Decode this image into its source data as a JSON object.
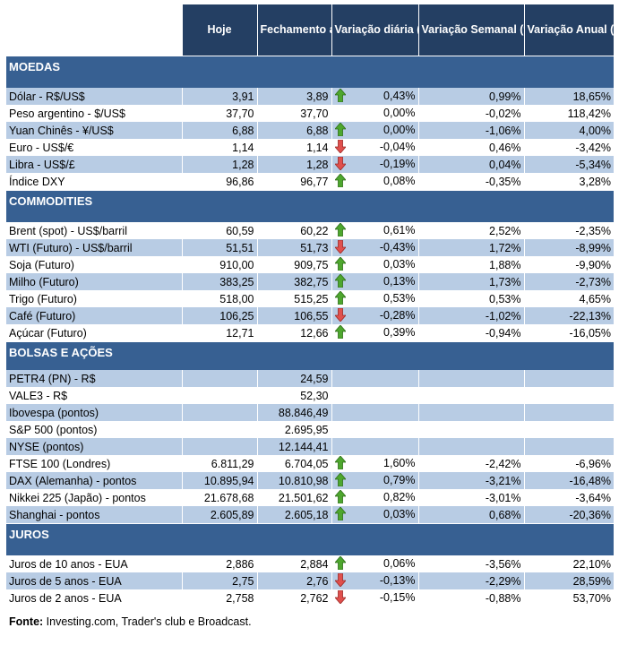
{
  "headers": [
    "",
    "Hoje",
    "Fechamento anterior",
    "Variação diária (%)",
    "Variação Semanal (%)",
    "Variação Anual (%)"
  ],
  "colors": {
    "header": "#243f63",
    "section": "#376092",
    "shaded": "#b8cce4",
    "up": "#4ea72e",
    "down": "#e0504d"
  },
  "sections": [
    {
      "title": "MOEDAS",
      "height": 31,
      "rows": [
        {
          "name": "Dólar - R$/US$",
          "hoje": "3,91",
          "fech": "3,89",
          "arrow": "up",
          "diaria": "0,43%",
          "semanal": "0,99%",
          "anual": "18,65%"
        },
        {
          "name": "Peso argentino - $/US$",
          "hoje": "37,70",
          "fech": "37,70",
          "arrow": "",
          "diaria": "0,00%",
          "semanal": "-0,02%",
          "anual": "118,42%"
        },
        {
          "name": "Yuan Chinês - ¥/US$",
          "hoje": "6,88",
          "fech": "6,88",
          "arrow": "up",
          "diaria": "0,00%",
          "semanal": "-1,06%",
          "anual": "4,00%"
        },
        {
          "name": "Euro - US$/€",
          "hoje": "1,14",
          "fech": "1,14",
          "arrow": "down",
          "diaria": "-0,04%",
          "semanal": "0,46%",
          "anual": "-3,42%"
        },
        {
          "name": "Libra - US$/£",
          "hoje": "1,28",
          "fech": "1,28",
          "arrow": "down",
          "diaria": "-0,19%",
          "semanal": "0,04%",
          "anual": "-5,34%"
        },
        {
          "name": "Índice DXY",
          "hoje": "96,86",
          "fech": "96,77",
          "arrow": "up",
          "diaria": "0,08%",
          "semanal": "-0,35%",
          "anual": "3,28%"
        }
      ]
    },
    {
      "title": "COMMODITIES",
      "height": 31,
      "rows": [
        {
          "name": "Brent (spot) - US$/barril",
          "hoje": "60,59",
          "fech": "60,22",
          "arrow": "up",
          "diaria": "0,61%",
          "semanal": "2,52%",
          "anual": "-2,35%"
        },
        {
          "name": "WTI (Futuro) - US$/barril",
          "hoje": "51,51",
          "fech": "51,73",
          "arrow": "down",
          "diaria": "-0,43%",
          "semanal": "1,72%",
          "anual": "-8,99%"
        },
        {
          "name": "Soja (Futuro)",
          "hoje": "910,00",
          "fech": "909,75",
          "arrow": "up",
          "diaria": "0,03%",
          "semanal": "1,88%",
          "anual": "-9,90%"
        },
        {
          "name": "Milho (Futuro)",
          "hoje": "383,25",
          "fech": "382,75",
          "arrow": "up",
          "diaria": "0,13%",
          "semanal": "1,73%",
          "anual": "-2,73%"
        },
        {
          "name": "Trigo (Futuro)",
          "hoje": "518,00",
          "fech": "515,25",
          "arrow": "up",
          "diaria": "0,53%",
          "semanal": "0,53%",
          "anual": "4,65%"
        },
        {
          "name": "Café (Futuro)",
          "hoje": "106,25",
          "fech": "106,55",
          "arrow": "down",
          "diaria": "-0,28%",
          "semanal": "-1,02%",
          "anual": "-22,13%"
        },
        {
          "name": "Açúcar (Futuro)",
          "hoje": "12,71",
          "fech": "12,66",
          "arrow": "up",
          "diaria": "0,39%",
          "semanal": "-0,94%",
          "anual": "-16,05%"
        }
      ]
    },
    {
      "title": "BOLSAS E AÇÕES",
      "height": 27,
      "rows": [
        {
          "name": "PETR4 (PN) - R$",
          "hoje": "",
          "fech": "24,59",
          "arrow": "",
          "diaria": "",
          "semanal": "",
          "anual": ""
        },
        {
          "name": "VALE3 - R$",
          "hoje": "",
          "fech": "52,30",
          "arrow": "",
          "diaria": "",
          "semanal": "",
          "anual": ""
        },
        {
          "name": "Ibovespa (pontos)",
          "hoje": "",
          "fech": "88.846,49",
          "arrow": "",
          "diaria": "",
          "semanal": "",
          "anual": ""
        },
        {
          "name": "S&P 500 (pontos)",
          "hoje": "",
          "fech": "2.695,95",
          "arrow": "",
          "diaria": "",
          "semanal": "",
          "anual": ""
        },
        {
          "name": "NYSE (pontos)",
          "hoje": "",
          "fech": "12.144,41",
          "arrow": "",
          "diaria": "",
          "semanal": "",
          "anual": ""
        },
        {
          "name": "FTSE 100 (Londres)",
          "hoje": "6.811,29",
          "fech": "6.704,05",
          "arrow": "up",
          "diaria": "1,60%",
          "semanal": "-2,42%",
          "anual": "-6,96%"
        },
        {
          "name": "DAX (Alemanha) - pontos",
          "hoje": "10.895,94",
          "fech": "10.810,98",
          "arrow": "up",
          "diaria": "0,79%",
          "semanal": "-3,21%",
          "anual": "-16,48%"
        },
        {
          "name": "Nikkei 225 (Japão) - pontos",
          "hoje": "21.678,68",
          "fech": "21.501,62",
          "arrow": "up",
          "diaria": "0,82%",
          "semanal": "-3,01%",
          "anual": "-3,64%"
        },
        {
          "name": "Shanghai - pontos",
          "hoje": "2.605,89",
          "fech": "2.605,18",
          "arrow": "up",
          "diaria": "0,03%",
          "semanal": "0,68%",
          "anual": "-20,36%"
        }
      ]
    },
    {
      "title": "JUROS",
      "height": 31,
      "rows": [
        {
          "name": "Juros de 10 anos - EUA",
          "hoje": "2,886",
          "fech": "2,884",
          "arrow": "up",
          "diaria": "0,06%",
          "semanal": "-3,56%",
          "anual": "22,10%"
        },
        {
          "name": "Juros de 5 anos - EUA",
          "hoje": "2,75",
          "fech": "2,76",
          "arrow": "down",
          "diaria": "-0,13%",
          "semanal": "-2,29%",
          "anual": "28,59%"
        },
        {
          "name": "Juros de 2 anos - EUA",
          "hoje": "2,758",
          "fech": "2,762",
          "arrow": "down",
          "diaria": "-0,15%",
          "semanal": "-0,88%",
          "anual": "53,70%"
        }
      ]
    }
  ],
  "footer": {
    "label": "Fonte:",
    "text": " Investing.com, Trader's club e Broadcast."
  }
}
